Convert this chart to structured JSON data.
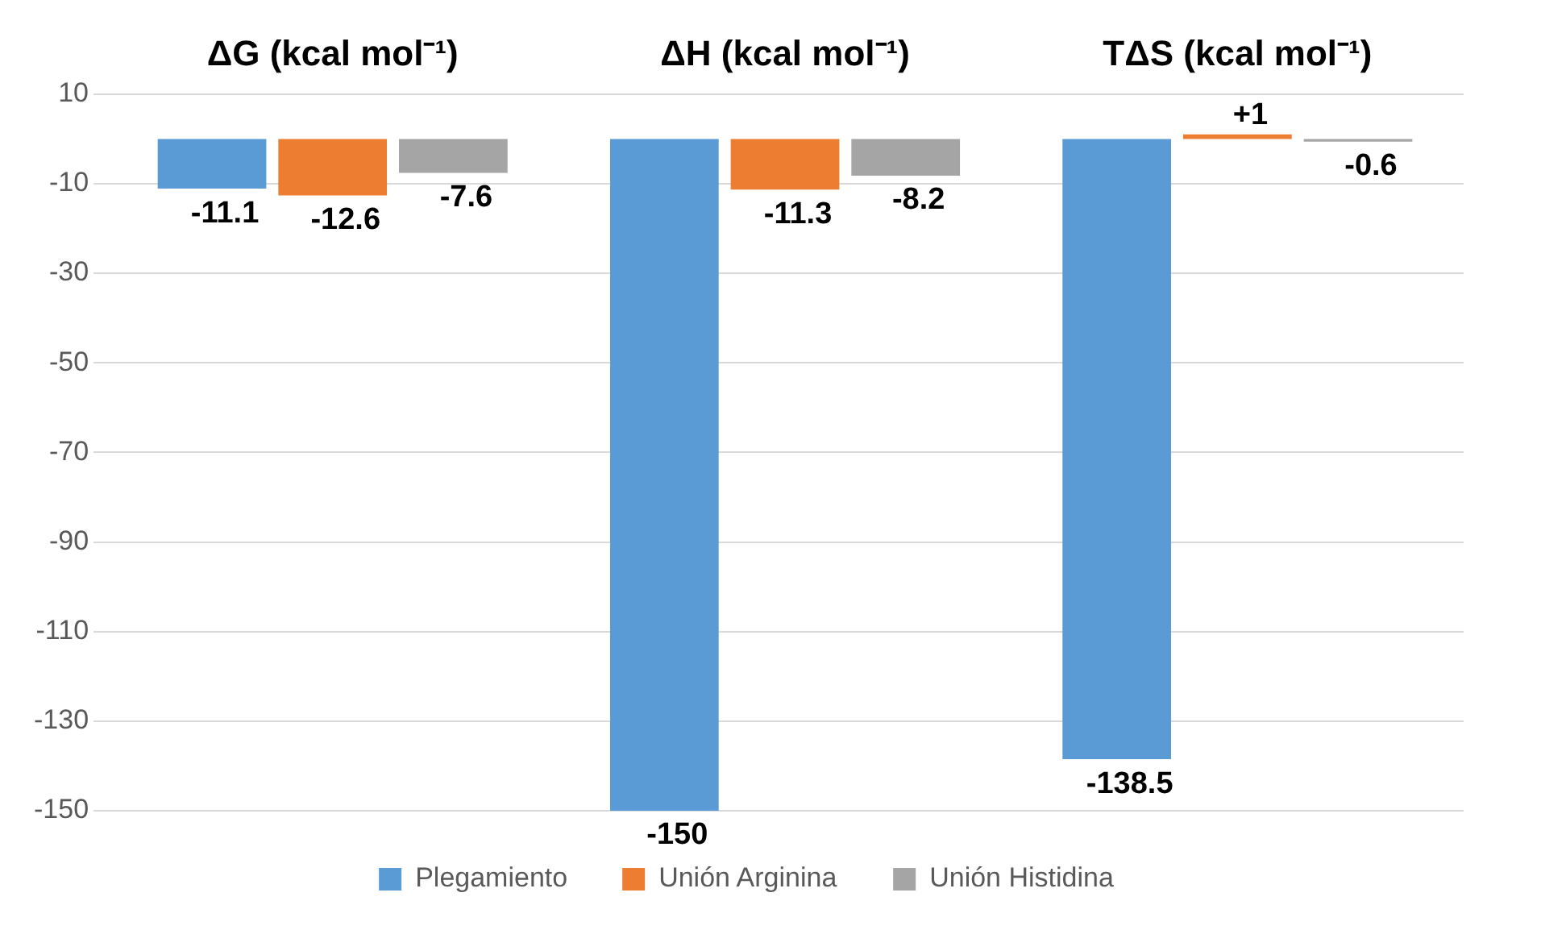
{
  "chart_data": {
    "type": "bar",
    "categories": [
      "ΔG (kcal mol⁻¹)",
      "ΔH (kcal mol⁻¹)",
      "TΔS (kcal mol⁻¹)"
    ],
    "series": [
      {
        "name": "Plegamiento",
        "color": "#5b9bd5",
        "values": [
          -11.1,
          -150,
          -138.5
        ],
        "value_labels": [
          "-11.1",
          "-150",
          "-138.5"
        ]
      },
      {
        "name": "Unión Arginina",
        "color": "#ed7d31",
        "values": [
          -12.6,
          -11.3,
          1
        ],
        "value_labels": [
          "-12.6",
          "-11.3",
          "+1"
        ]
      },
      {
        "name": "Unión Histidina",
        "color": "#a5a5a5",
        "values": [
          -7.6,
          -8.2,
          -0.6
        ],
        "value_labels": [
          "-7.6",
          "-8.2",
          "-0.6"
        ]
      }
    ],
    "ylim": [
      -150,
      10
    ],
    "yticks": [
      10,
      -10,
      -30,
      -50,
      -70,
      -90,
      -110,
      -130,
      -150
    ],
    "grid": "y",
    "legend": "bottom"
  }
}
